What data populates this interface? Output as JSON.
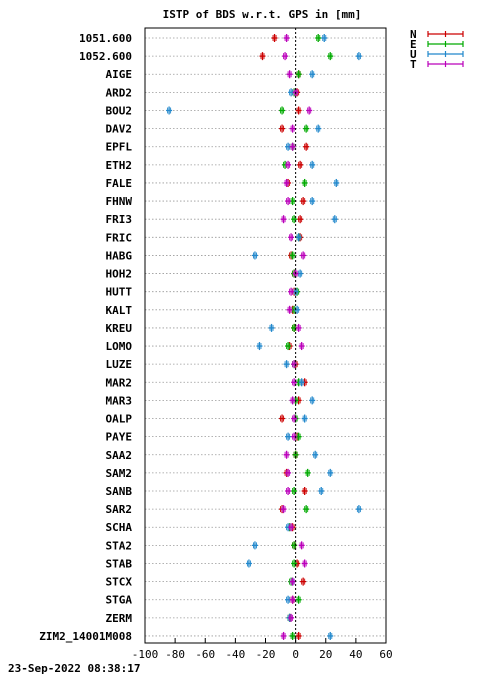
{
  "chart_data": {
    "type": "scatter",
    "title": "ISTP of BDS w.r.t. GPS in [mm]",
    "xlabel": "",
    "ylabel": "",
    "xlim": [
      -100,
      60
    ],
    "xticks": [
      -100,
      -80,
      -60,
      -40,
      -20,
      0,
      20,
      40,
      60
    ],
    "grid": "horizontal dotted",
    "legend_position": "top-right",
    "categories": [
      "1051.600",
      "1052.600",
      "AIGE",
      "ARD2",
      "BOU2",
      "DAV2",
      "EPFL",
      "ETH2",
      "FALE",
      "FHNW",
      "FRI3",
      "FRIC",
      "HABG",
      "HOH2",
      "HUTT",
      "KALT",
      "KREU",
      "LOMO",
      "LUZE",
      "MAR2",
      "MAR3",
      "OALP",
      "PAYE",
      "SAA2",
      "SAM2",
      "SANB",
      "SAR2",
      "SCHA",
      "STA2",
      "STAB",
      "STCX",
      "STGA",
      "ZERM",
      "ZIM2_14001M008"
    ],
    "series": [
      {
        "name": "N",
        "color": "#cc0000",
        "values": [
          -14,
          -22,
          2,
          1,
          2,
          -9,
          7,
          3,
          -5,
          5,
          3,
          3,
          -3,
          -1,
          -1,
          -2,
          -1,
          -4,
          0,
          6,
          2,
          -9,
          1,
          0,
          -6,
          6,
          -9,
          -2,
          -1,
          1,
          5,
          -2,
          -4,
          2
        ]
      },
      {
        "name": "E",
        "color": "#00aa00",
        "values": [
          15,
          23,
          2,
          -1,
          -9,
          7,
          -2,
          -7,
          6,
          -2,
          -1,
          2,
          -2,
          -1,
          1,
          -1,
          -1,
          -5,
          -1,
          2,
          0,
          0,
          2,
          0,
          8,
          -1,
          7,
          -4,
          -1,
          -1,
          -3,
          2,
          -4,
          -2
        ]
      },
      {
        "name": "U",
        "color": "#2288cc",
        "values": [
          19,
          42,
          11,
          -3,
          -84,
          15,
          -5,
          11,
          27,
          11,
          26,
          2,
          -27,
          3,
          0,
          1,
          -16,
          -24,
          -6,
          4,
          11,
          6,
          -5,
          13,
          23,
          17,
          42,
          -5,
          -27,
          -31,
          -2,
          -5,
          -4,
          23
        ]
      },
      {
        "name": "T",
        "color": "#bb00bb",
        "values": [
          -6,
          -7,
          -4,
          0,
          9,
          -2,
          -2,
          -5,
          -6,
          -5,
          -8,
          -3,
          5,
          0,
          -3,
          -4,
          2,
          4,
          -1,
          -1,
          -2,
          -1,
          -1,
          -6,
          -5,
          -5,
          -8,
          -3,
          4,
          6,
          -2,
          -2,
          -3,
          -8
        ]
      }
    ]
  },
  "timestamp": "23-Sep-2022 08:38:17"
}
